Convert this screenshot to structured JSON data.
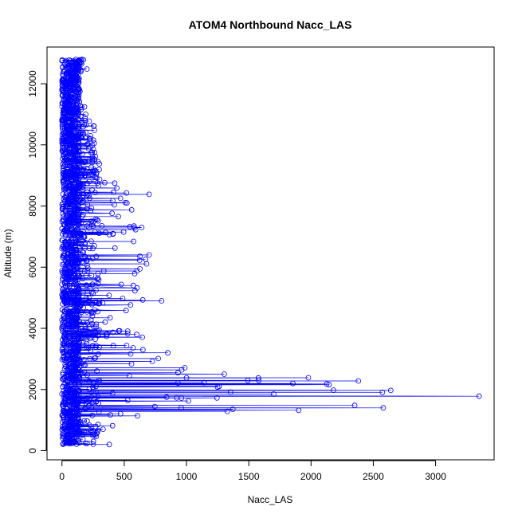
{
  "chart_data": {
    "type": "scatter",
    "title": "ATOM4 Northbound Nacc_LAS",
    "xlabel": "Nacc_LAS",
    "ylabel": "Altitude (m)",
    "xlim": [
      -120,
      3470
    ],
    "ylim": [
      -300,
      13200
    ],
    "xticks": [
      0,
      500,
      1000,
      1500,
      2000,
      2500,
      3000
    ],
    "yticks": [
      0,
      2000,
      4000,
      6000,
      8000,
      10000,
      12000
    ],
    "grid": false,
    "legend": "none",
    "marker": "open-circle",
    "connected": true,
    "series_color": "#0000ff",
    "profile_envelope": {
      "altitude": [
        200,
        500,
        1000,
        1500,
        1800,
        2000,
        2300,
        2800,
        3200,
        4000,
        5000,
        6000,
        7000,
        8000,
        8400,
        9000,
        9400,
        10000,
        10500,
        11000,
        11500,
        12000,
        12500,
        12800
      ],
      "bulk_max": [
        380,
        300,
        700,
        1900,
        2600,
        2600,
        2450,
        1000,
        760,
        620,
        830,
        710,
        650,
        600,
        720,
        280,
        320,
        260,
        270,
        210,
        160,
        140,
        160,
        200
      ]
    },
    "highlights": [
      {
        "x": 3350,
        "y": 1780
      },
      {
        "x": 2640,
        "y": 1970
      },
      {
        "x": 2580,
        "y": 1400
      },
      {
        "x": 2380,
        "y": 2280
      },
      {
        "x": 2350,
        "y": 1480
      },
      {
        "x": 1900,
        "y": 1320
      },
      {
        "x": 1700,
        "y": 1850
      },
      {
        "x": 1580,
        "y": 2300
      },
      {
        "x": 1250,
        "y": 2080
      },
      {
        "x": 1000,
        "y": 2380
      },
      {
        "x": 850,
        "y": 3200
      },
      {
        "x": 800,
        "y": 4900
      },
      {
        "x": 700,
        "y": 6400
      },
      {
        "x": 700,
        "y": 8380
      },
      {
        "x": 640,
        "y": 7300
      },
      {
        "x": 600,
        "y": 3800
      },
      {
        "x": 420,
        "y": 8040
      },
      {
        "x": 300,
        "y": 9380
      },
      {
        "x": 260,
        "y": 10480
      },
      {
        "x": 200,
        "y": 12480
      },
      {
        "x": 150,
        "y": 12780
      },
      {
        "x": 380,
        "y": 200
      },
      {
        "x": 330,
        "y": 700
      }
    ]
  }
}
